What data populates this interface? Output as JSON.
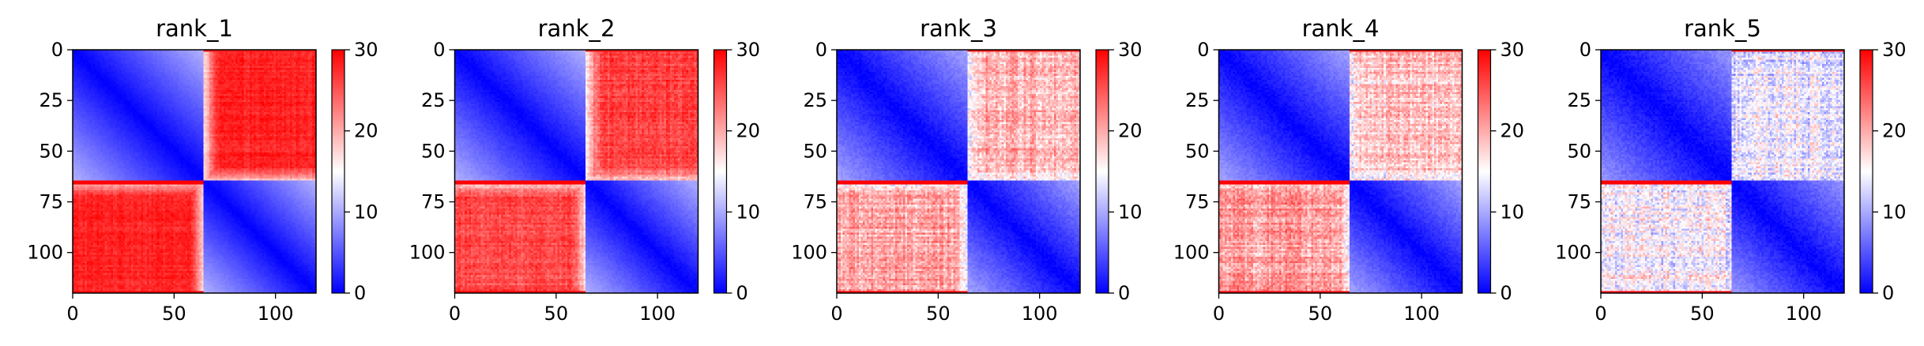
{
  "figure": {
    "background": "#ffffff",
    "colormap": "bwr",
    "colormap_stops": [
      "#0000ff",
      "#ffffff",
      "#ff0000"
    ]
  },
  "chart_data": [
    {
      "type": "heatmap",
      "title": "rank_1",
      "matrix_size": 121,
      "xlim": [
        0,
        120
      ],
      "ylim": [
        120,
        0
      ],
      "x_ticks": [
        0,
        50,
        100
      ],
      "y_ticks": [
        0,
        25,
        50,
        75,
        100
      ],
      "x_tick_labels": [
        "0",
        "50",
        "100"
      ],
      "y_tick_labels": [
        "0",
        "25",
        "50",
        "75",
        "100"
      ],
      "colorbar": {
        "min": 0,
        "max": 30,
        "ticks": [
          0,
          10,
          20,
          30
        ],
        "tick_labels": [
          "0",
          "10",
          "20",
          "30"
        ]
      },
      "structure": {
        "block_boundary": 65,
        "within_block_min": 0,
        "within_block_far": 14,
        "between_block": 28,
        "noise": 1.0,
        "upper_right_brightness": 1.0,
        "lower_left_brightness": 1.0
      }
    },
    {
      "type": "heatmap",
      "title": "rank_2",
      "matrix_size": 121,
      "xlim": [
        0,
        120
      ],
      "ylim": [
        120,
        0
      ],
      "x_ticks": [
        0,
        50,
        100
      ],
      "y_ticks": [
        0,
        25,
        50,
        75,
        100
      ],
      "x_tick_labels": [
        "0",
        "50",
        "100"
      ],
      "y_tick_labels": [
        "0",
        "25",
        "50",
        "75",
        "100"
      ],
      "colorbar": {
        "min": 0,
        "max": 30,
        "ticks": [
          0,
          10,
          20,
          30
        ],
        "tick_labels": [
          "0",
          "10",
          "20",
          "30"
        ]
      },
      "structure": {
        "block_boundary": 65,
        "within_block_min": 0,
        "within_block_far": 14,
        "between_block": 27,
        "noise": 1.5,
        "upper_right_brightness": 0.97,
        "lower_left_brightness": 0.95
      }
    },
    {
      "type": "heatmap",
      "title": "rank_3",
      "matrix_size": 121,
      "xlim": [
        0,
        120
      ],
      "ylim": [
        120,
        0
      ],
      "x_ticks": [
        0,
        50,
        100
      ],
      "y_ticks": [
        0,
        25,
        50,
        75,
        100
      ],
      "x_tick_labels": [
        "0",
        "50",
        "100"
      ],
      "y_tick_labels": [
        "0",
        "25",
        "50",
        "75",
        "100"
      ],
      "colorbar": {
        "min": 0,
        "max": 30,
        "ticks": [
          0,
          10,
          20,
          30
        ],
        "tick_labels": [
          "0",
          "10",
          "20",
          "30"
        ]
      },
      "structure": {
        "block_boundary": 65,
        "within_block_min": 0,
        "within_block_far": 13,
        "between_block": 23,
        "noise": 2.5,
        "upper_right_brightness": 0.85,
        "lower_left_brightness": 0.88
      }
    },
    {
      "type": "heatmap",
      "title": "rank_4",
      "matrix_size": 121,
      "xlim": [
        0,
        120
      ],
      "ylim": [
        120,
        0
      ],
      "x_ticks": [
        0,
        50,
        100
      ],
      "y_ticks": [
        0,
        25,
        50,
        75,
        100
      ],
      "x_tick_labels": [
        "0",
        "50",
        "100"
      ],
      "y_tick_labels": [
        "0",
        "25",
        "50",
        "75",
        "100"
      ],
      "colorbar": {
        "min": 0,
        "max": 30,
        "ticks": [
          0,
          10,
          20,
          30
        ],
        "tick_labels": [
          "0",
          "10",
          "20",
          "30"
        ]
      },
      "structure": {
        "block_boundary": 65,
        "within_block_min": 0,
        "within_block_far": 13,
        "between_block": 23,
        "noise": 2.5,
        "upper_right_brightness": 0.8,
        "lower_left_brightness": 0.9
      }
    },
    {
      "type": "heatmap",
      "title": "rank_5",
      "matrix_size": 121,
      "xlim": [
        0,
        120
      ],
      "ylim": [
        120,
        0
      ],
      "x_ticks": [
        0,
        50,
        100
      ],
      "y_ticks": [
        0,
        25,
        50,
        75,
        100
      ],
      "x_tick_labels": [
        "0",
        "50",
        "100"
      ],
      "y_tick_labels": [
        "0",
        "25",
        "50",
        "75",
        "100"
      ],
      "colorbar": {
        "min": 0,
        "max": 30,
        "ticks": [
          0,
          10,
          20,
          30
        ],
        "tick_labels": [
          "0",
          "10",
          "20",
          "30"
        ]
      },
      "structure": {
        "block_boundary": 65,
        "within_block_min": 0,
        "within_block_far": 12,
        "between_block": 20,
        "noise": 3.0,
        "upper_right_brightness": 0.68,
        "lower_left_brightness": 0.75
      }
    }
  ]
}
